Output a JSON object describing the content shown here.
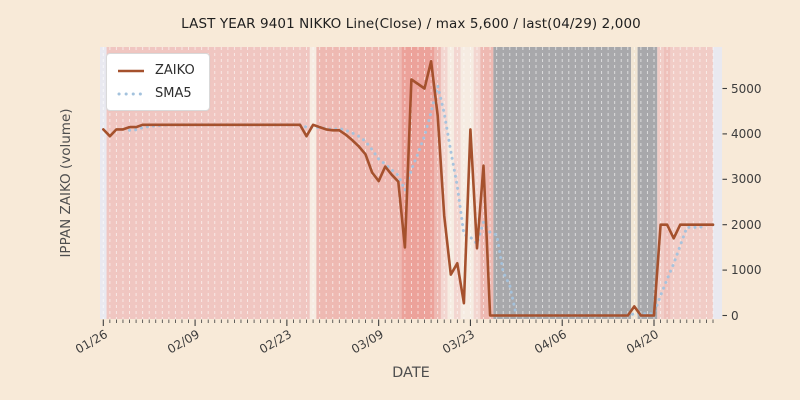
{
  "chart_data": {
    "type": "line",
    "title": "LAST YEAR 9401 NIKKO Line(Close) / max 5,600 / last(04/29) 2,000",
    "xlabel": "DATE",
    "ylabel": "IPPAN ZAIKO (volume)",
    "max_annotation": "max 5,600",
    "last_annotation": "last(04/29) 2,000",
    "x_unit": "day",
    "x_range": [
      "01/26",
      "04/29"
    ],
    "n_points": 94,
    "xticks": [
      "01/26",
      "02/09",
      "02/23",
      "03/09",
      "03/23",
      "04/06",
      "04/20"
    ],
    "xtick_days": [
      0,
      14,
      28,
      42,
      56,
      70,
      84
    ],
    "yticks": [
      0,
      1000,
      2000,
      3000,
      4000,
      5000
    ],
    "ylim": [
      -80,
      5915
    ],
    "grid": "vertical-daily-dashed",
    "legend_position": "upper-left",
    "series": [
      {
        "name": "ZAIKO",
        "style": "solid",
        "color": "#a5512d",
        "values": [
          4100,
          3950,
          4100,
          4100,
          4150,
          4150,
          4200,
          4200,
          4200,
          4200,
          4200,
          4200,
          4200,
          4200,
          4200,
          4200,
          4200,
          4200,
          4200,
          4200,
          4200,
          4200,
          4200,
          4200,
          4200,
          4200,
          4200,
          4200,
          4200,
          4200,
          4200,
          3950,
          4200,
          4150,
          4100,
          4080,
          4080,
          3980,
          3860,
          3720,
          3550,
          3150,
          2960,
          3280,
          3100,
          2950,
          1500,
          5200,
          5100,
          5000,
          5600,
          4400,
          2200,
          900,
          1150,
          270,
          4100,
          1480,
          3300,
          0,
          0,
          0,
          0,
          0,
          0,
          0,
          0,
          0,
          0,
          0,
          0,
          0,
          0,
          0,
          0,
          0,
          0,
          0,
          0,
          0,
          0,
          200,
          0,
          0,
          0,
          2000,
          2000,
          1700,
          2000,
          2000,
          2000,
          2000,
          2000,
          2000
        ]
      },
      {
        "name": "SMA5",
        "style": "dotted",
        "color": "#a3c2dd",
        "derived": "trailing 5-day moving average of ZAIKO",
        "values": [
          null,
          null,
          null,
          null,
          4080,
          4090,
          4140,
          4160,
          4180,
          4190,
          4200,
          4200,
          4200,
          4200,
          4200,
          4200,
          4200,
          4200,
          4200,
          4200,
          4200,
          4200,
          4200,
          4200,
          4200,
          4200,
          4200,
          4200,
          4200,
          4200,
          4200,
          4150,
          4150,
          4140,
          4120,
          4096,
          4122,
          4078,
          4020,
          3944,
          3838,
          3652,
          3448,
          3332,
          3208,
          3088,
          2758,
          3206,
          3570,
          3950,
          4480,
          5060,
          4460,
          3620,
          2850,
          1784,
          1724,
          1580,
          2060,
          1830,
          1776,
          956,
          660,
          0,
          0,
          0,
          0,
          0,
          0,
          0,
          0,
          0,
          0,
          0,
          0,
          0,
          0,
          0,
          0,
          0,
          0,
          40,
          40,
          40,
          40,
          440,
          800,
          1140,
          1540,
          1940,
          1940,
          1940,
          2000,
          2000
        ]
      }
    ],
    "band_palette": {
      "pink": "#f0c6c1",
      "pink2": "#eeb9b2",
      "pink3": "#f3d6d0",
      "ivory": "#f6ece2",
      "salmon": "#eca29a",
      "gray": "#a8a8ab",
      "cream": "#f1e5d3",
      "pinkR": "#f1ccc6",
      "pink2r": "#eec0ba"
    },
    "bands": [
      {
        "from": 1,
        "to": 31,
        "color": "pink"
      },
      {
        "from": 32,
        "to": 32,
        "color": "ivory"
      },
      {
        "from": 33,
        "to": 45,
        "color": "pink2"
      },
      {
        "from": 46,
        "to": 50,
        "color": "salmon"
      },
      {
        "from": 51,
        "to": 51,
        "color": "pink2"
      },
      {
        "from": 52,
        "to": 52,
        "color": "pink3"
      },
      {
        "from": 53,
        "to": 53,
        "color": "ivory"
      },
      {
        "from": 54,
        "to": 54,
        "color": "pink3"
      },
      {
        "from": 55,
        "to": 56,
        "color": "ivory"
      },
      {
        "from": 57,
        "to": 57,
        "color": "pink3"
      },
      {
        "from": 58,
        "to": 59,
        "color": "pink2"
      },
      {
        "from": 60,
        "to": 80,
        "color": "gray"
      },
      {
        "from": 81,
        "to": 81,
        "color": "cream"
      },
      {
        "from": 82,
        "to": 84,
        "color": "gray"
      },
      {
        "from": 85,
        "to": 85,
        "color": "pinkR"
      },
      {
        "from": 86,
        "to": 86,
        "color": "pink2r"
      },
      {
        "from": 87,
        "to": 93,
        "color": "pinkR"
      }
    ]
  },
  "layout_colors": {
    "figure_bg": "#f8ead8",
    "axes_bg": "#e9e9f0",
    "gridline": "rgba(255,255,255,0.6)",
    "tick_color": "#3d3d3d",
    "title_color": "#1f1f1f",
    "axis_label_color": "#4f4f4f",
    "legend_bg": "#ffffff",
    "legend_border": "#d9d9d9"
  }
}
